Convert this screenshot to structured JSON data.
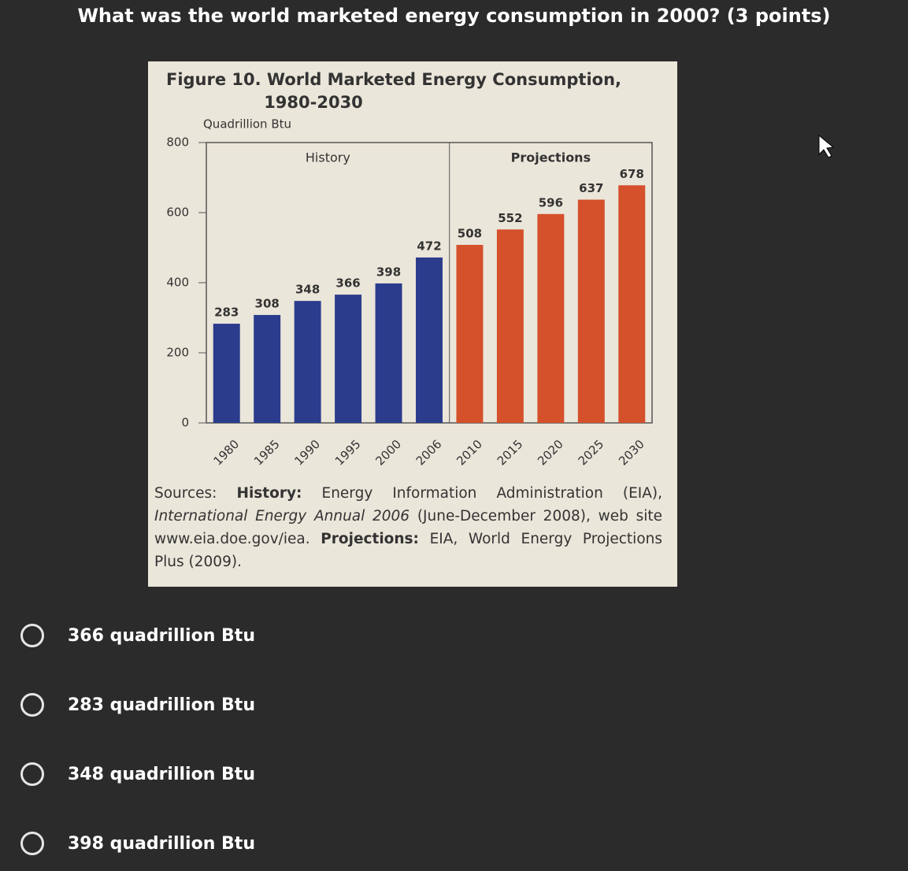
{
  "question": "What was the world marketed energy consumption in 2000? (3 points)",
  "chart_data": {
    "type": "bar",
    "title": [
      "Figure 10. World Marketed Energy Consumption,",
      "1980-2030"
    ],
    "y_label": "Quadrillion Btu",
    "categories": [
      "1980",
      "1985",
      "1990",
      "1995",
      "2000",
      "2006",
      "2010",
      "2015",
      "2020",
      "2025",
      "2030"
    ],
    "series": [
      {
        "name": "History",
        "color": "#2b3c8c",
        "values": [
          283,
          308,
          348,
          366,
          398,
          472,
          null,
          null,
          null,
          null,
          null
        ]
      },
      {
        "name": "Projections",
        "color": "#d4512b",
        "values": [
          null,
          null,
          null,
          null,
          null,
          null,
          508,
          552,
          596,
          637,
          678
        ]
      }
    ],
    "ylim": [
      0,
      800
    ],
    "yticks": [
      0,
      200,
      400,
      600,
      800
    ]
  },
  "sources": [
    "Sources: ",
    "History:",
    " Energy Information Administration (EIA), ",
    "International Energy Annual 2006",
    " (June-December 2008), web site www.eia.doe.gov/iea. ",
    "Projections:",
    " EIA, World Energy Projections Plus (2009)."
  ],
  "options": [
    "366 quadrillion Btu",
    "283 quadrillion Btu",
    "348 quadrillion Btu",
    "398 quadrillion Btu"
  ]
}
